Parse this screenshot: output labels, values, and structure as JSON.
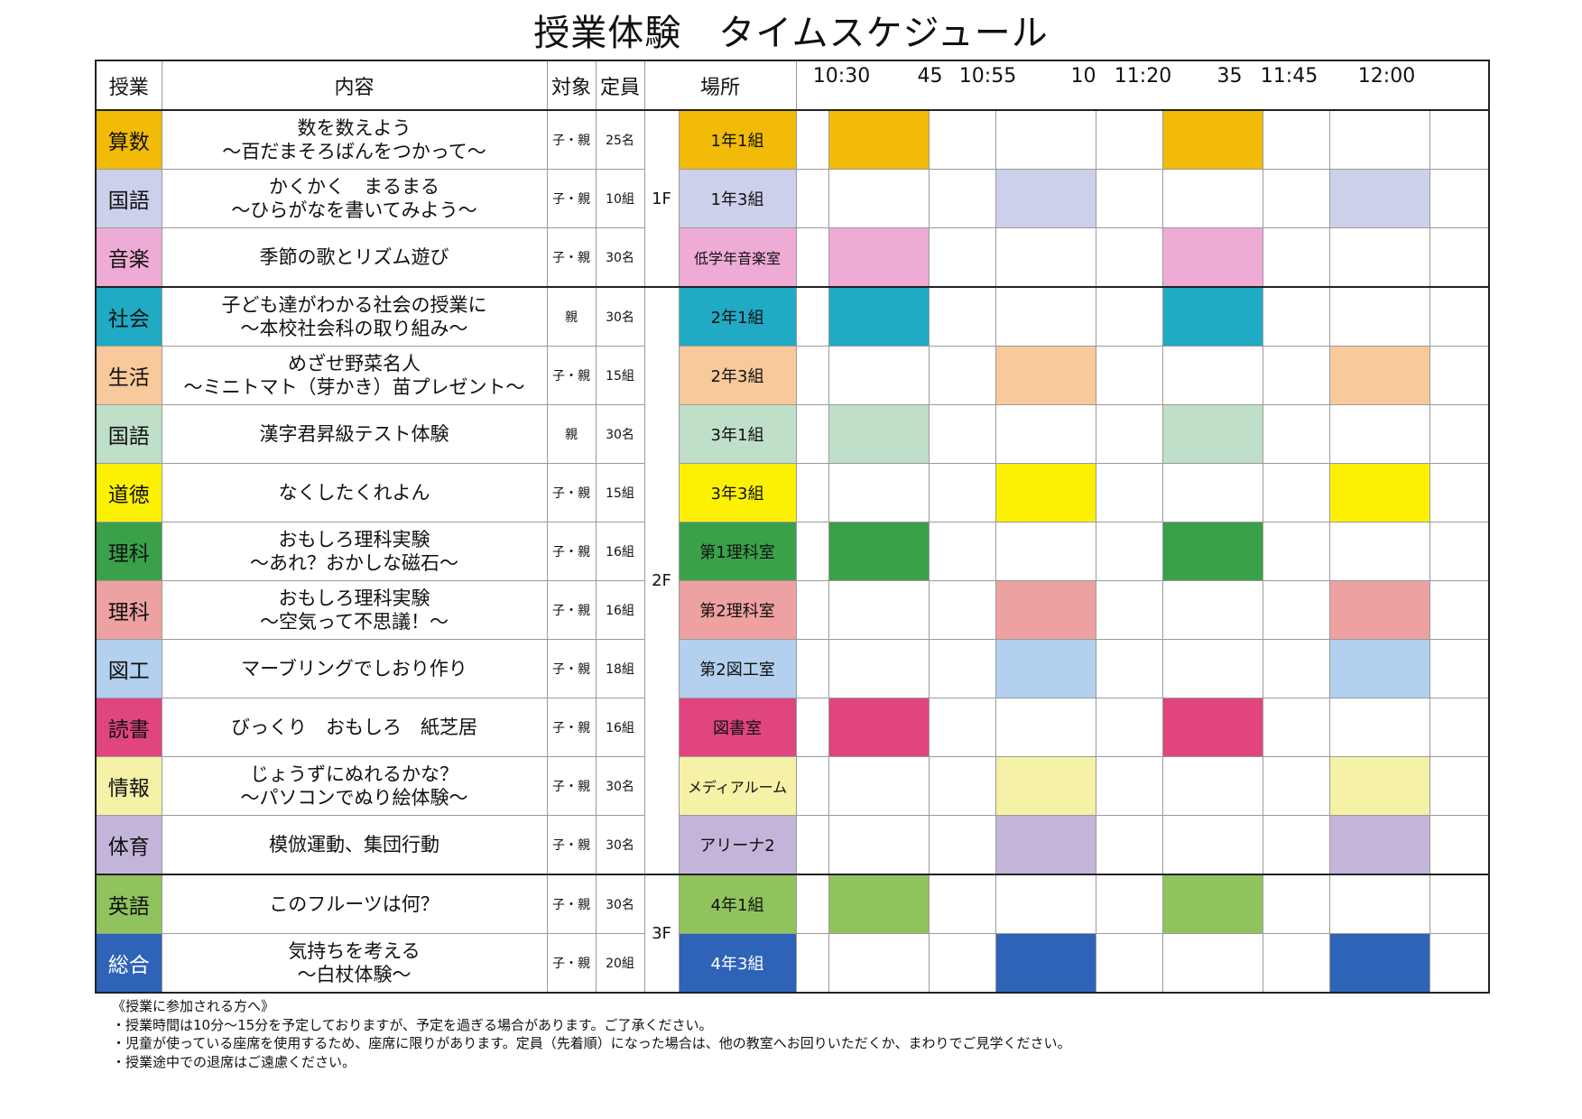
{
  "title": "授業体験　タイムスケジュール",
  "headers": {
    "subject": "授業",
    "content": "内容",
    "target": "対象",
    "capacity": "定員",
    "place": "場所"
  },
  "time_labels": [
    "10:30",
    "45",
    "10:55",
    "10",
    "11:20",
    "35",
    "11:45",
    "12:00"
  ],
  "floors": [
    "1F",
    "2F",
    "3F"
  ],
  "rows": [
    {
      "subject": "算数",
      "subject_color": "#f1bb07",
      "content": [
        "数を数えよう",
        "～百だまそろばんをつかって～"
      ],
      "target": "子・親",
      "capacity": "25名",
      "room": "1年1組",
      "slot_color": "#f1bb07",
      "slots": [
        1,
        0,
        0,
        0,
        1,
        0,
        0,
        0
      ]
    },
    {
      "subject": "国語",
      "subject_color": "#cdd0ea",
      "content": [
        "かくかく　まるまる",
        "～ひらがなを書いてみよう～"
      ],
      "target": "子・親",
      "capacity": "10組",
      "room": "1年3組",
      "slot_color": "#cdd0ea",
      "slots": [
        0,
        0,
        1,
        0,
        0,
        0,
        1,
        0
      ]
    },
    {
      "subject": "音楽",
      "subject_color": "#eeabd5",
      "content": [
        "季節の歌とリズム遊び"
      ],
      "target": "子・親",
      "capacity": "30名",
      "room": "低学年音楽室",
      "slot_color": "#eeabd5",
      "slots": [
        1,
        0,
        0,
        0,
        1,
        0,
        0,
        0
      ]
    },
    {
      "subject": "社会",
      "subject_color": "#20aac4",
      "content": [
        "子ども達がわかる社会の授業に",
        "～本校社会科の取り組み～"
      ],
      "target": "親",
      "capacity": "30名",
      "room": "2年1組",
      "slot_color": "#20aac4",
      "slots": [
        1,
        0,
        0,
        0,
        1,
        0,
        0,
        0
      ]
    },
    {
      "subject": "生活",
      "subject_color": "#f7c99b",
      "content": [
        "めざせ野菜名人",
        "～ミニトマト（芽かき）苗プレゼント～"
      ],
      "target": "子・親",
      "capacity": "15組",
      "room": "2年3組",
      "slot_color": "#f7c99b",
      "slots": [
        0,
        0,
        1,
        0,
        0,
        0,
        1,
        0
      ]
    },
    {
      "subject": "国語",
      "subject_color": "#bfdfc9",
      "content": [
        "漢字君昇級テスト体験"
      ],
      "target": "親",
      "capacity": "30名",
      "room": "3年1組",
      "slot_color": "#bfdfc9",
      "slots": [
        1,
        0,
        0,
        0,
        1,
        0,
        0,
        0
      ]
    },
    {
      "subject": "道徳",
      "subject_color": "#fdf103",
      "content": [
        "なくしたくれよん"
      ],
      "target": "子・親",
      "capacity": "15組",
      "room": "3年3組",
      "slot_color": "#fdf103",
      "slots": [
        0,
        0,
        1,
        0,
        0,
        0,
        1,
        0
      ]
    },
    {
      "subject": "理科",
      "subject_color": "#3aa14a",
      "content": [
        "おもしろ理科実験",
        "～あれ？おかしな磁石～"
      ],
      "target": "子・親",
      "capacity": "16組",
      "room": "第1理科室",
      "slot_color": "#3aa14a",
      "slots": [
        1,
        0,
        0,
        0,
        1,
        0,
        0,
        0
      ]
    },
    {
      "subject": "理科",
      "subject_color": "#eea1a1",
      "content": [
        "おもしろ理科実験",
        "～空気って不思議！～"
      ],
      "target": "子・親",
      "capacity": "16組",
      "room": "第2理科室",
      "slot_color": "#eea1a1",
      "slots": [
        0,
        0,
        1,
        0,
        0,
        0,
        1,
        0
      ]
    },
    {
      "subject": "図工",
      "subject_color": "#b3d0ee",
      "content": [
        "マーブリングでしおり作り"
      ],
      "target": "子・親",
      "capacity": "18組",
      "room": "第2図工室",
      "slot_color": "#b3d0ee",
      "slots": [
        0,
        0,
        1,
        0,
        0,
        0,
        1,
        0
      ]
    },
    {
      "subject": "読書",
      "subject_color": "#e04580",
      "content": [
        "びっくり　おもしろ　紙芝居"
      ],
      "target": "子・親",
      "capacity": "16組",
      "room": "図書室",
      "slot_color": "#e04580",
      "slots": [
        1,
        0,
        0,
        0,
        1,
        0,
        0,
        0
      ]
    },
    {
      "subject": "情報",
      "subject_color": "#f5f1a6",
      "content": [
        "じょうずにぬれるかな？",
        "～パソコンでぬり絵体験～"
      ],
      "target": "子・親",
      "capacity": "30名",
      "room": "メディアルーム",
      "slot_color": "#f5f1a6",
      "slots": [
        0,
        0,
        1,
        0,
        0,
        0,
        1,
        0
      ]
    },
    {
      "subject": "体育",
      "subject_color": "#c3b5d9",
      "content": [
        "模倣運動、集団行動"
      ],
      "target": "子・親",
      "capacity": "30名",
      "room": "アリーナ2",
      "slot_color": "#c3b5d9",
      "slots": [
        0,
        0,
        1,
        0,
        0,
        0,
        1,
        0
      ]
    },
    {
      "subject": "英語",
      "subject_color": "#90c35e",
      "content": [
        "このフルーツは何？"
      ],
      "target": "子・親",
      "capacity": "30名",
      "room": "4年1組",
      "slot_color": "#90c35e",
      "slots": [
        1,
        0,
        0,
        0,
        1,
        0,
        0,
        0
      ]
    },
    {
      "subject": "総合",
      "subject_color": "#2f63b8",
      "content": [
        "気持ちを考える",
        "～白杖体験～"
      ],
      "target": "子・親",
      "capacity": "20組",
      "room": "4年3組",
      "slot_color": "#2f63b8",
      "slots": [
        0,
        0,
        1,
        0,
        0,
        0,
        1,
        0
      ]
    }
  ],
  "notes": [
    "《授業に参加される方へ》",
    "・授業時間は10分～15分を予定しておりますが、予定を過ぎる場合があります。ご了承ください。",
    "・児童が使っている座席を使用するため、座席に限りがあります。定員（先着順）になった場合は、他の教室へお回りいただくか、まわりでご見学ください。",
    "・授業途中での退席はご遠慮ください。"
  ]
}
